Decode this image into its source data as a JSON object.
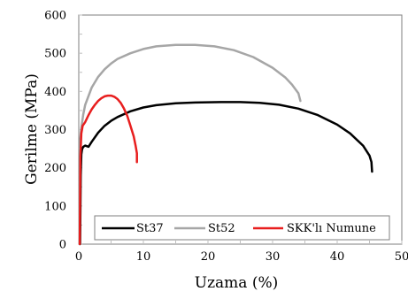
{
  "chart_data": {
    "type": "line",
    "title": "",
    "xlabel": "Uzama (%)",
    "ylabel": "Gerilme (MPa)",
    "xlim": [
      0,
      50
    ],
    "ylim": [
      0,
      600
    ],
    "xticks": [
      0,
      10,
      20,
      30,
      40,
      50
    ],
    "yticks": [
      0,
      100,
      200,
      300,
      400,
      500,
      600
    ],
    "grid": false,
    "legend_position": "bottom",
    "series": [
      {
        "name": "St37",
        "color": "#000000",
        "x": [
          0.2,
          0.3,
          0.4,
          0.5,
          0.7,
          1,
          1.5,
          2,
          3,
          4,
          5,
          6,
          8,
          10,
          12,
          15,
          18,
          22,
          25,
          28,
          31,
          34,
          37,
          40,
          42,
          44,
          45,
          45.3,
          45.4
        ],
        "y": [
          0,
          180,
          235,
          248,
          255,
          258,
          255,
          268,
          292,
          310,
          323,
          333,
          348,
          358,
          364,
          369,
          371,
          372,
          372,
          370,
          365,
          355,
          338,
          313,
          290,
          258,
          232,
          215,
          190
        ]
      },
      {
        "name": "St52",
        "color": "#a6a6a6",
        "x": [
          0.1,
          0.2,
          0.4,
          0.7,
          1,
          2,
          3,
          4,
          5,
          6,
          8,
          10,
          12,
          15,
          18,
          21,
          24,
          27,
          30,
          32,
          33,
          34,
          34.3
        ],
        "y": [
          0,
          270,
          305,
          340,
          365,
          410,
          438,
          458,
          473,
          485,
          500,
          511,
          518,
          522,
          522,
          518,
          508,
          490,
          462,
          436,
          418,
          395,
          375
        ]
      },
      {
        "name": "SKK'lı Numune",
        "color": "#e81e1e",
        "x": [
          0.15,
          0.25,
          0.4,
          0.6,
          1,
          1.5,
          2,
          2.5,
          3,
          3.5,
          4,
          4.5,
          5,
          5.5,
          6,
          6.5,
          7,
          7.5,
          8,
          8.5,
          8.8,
          9,
          9
        ],
        "y": [
          0,
          230,
          290,
          310,
          320,
          338,
          353,
          365,
          375,
          382,
          387,
          389,
          389,
          386,
          380,
          370,
          355,
          336,
          310,
          282,
          258,
          238,
          215
        ]
      }
    ]
  }
}
